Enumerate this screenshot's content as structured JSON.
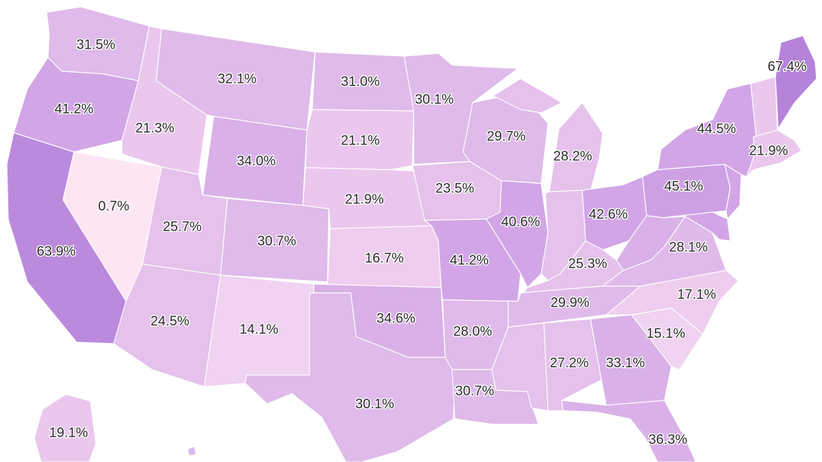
{
  "map": {
    "colors": {
      "c07": "#fde6f3",
      "c14": "#f0d2f1",
      "c17": "#efcdef",
      "c20": "#ebc7ee",
      "c25": "#e5c1ec",
      "c30": "#dfbaea",
      "c35": "#d9b1e8",
      "c42": "#d2a6e6",
      "c45": "#cda0e4",
      "c64": "#bb8add",
      "c67": "#b683da"
    },
    "states": [
      {
        "id": "WA",
        "value": "31.5%"
      },
      {
        "id": "OR",
        "value": "41.2%"
      },
      {
        "id": "CA",
        "value": "63.9%"
      },
      {
        "id": "NV",
        "value": "0.7%"
      },
      {
        "id": "ID",
        "value": "21.3%"
      },
      {
        "id": "MT",
        "value": "32.1%"
      },
      {
        "id": "WY",
        "value": "34.0%"
      },
      {
        "id": "UT",
        "value": "25.7%"
      },
      {
        "id": "CO",
        "value": "30.7%"
      },
      {
        "id": "AZ",
        "value": "24.5%"
      },
      {
        "id": "NM",
        "value": "14.1%"
      },
      {
        "id": "ND",
        "value": "31.0%"
      },
      {
        "id": "SD",
        "value": "21.1%"
      },
      {
        "id": "NE",
        "value": "21.9%"
      },
      {
        "id": "KS",
        "value": "16.7%"
      },
      {
        "id": "OK",
        "value": "34.6%"
      },
      {
        "id": "TX",
        "value": "30.1%"
      },
      {
        "id": "MN",
        "value": "30.1%"
      },
      {
        "id": "IA",
        "value": "23.5%"
      },
      {
        "id": "MO",
        "value": "41.2%"
      },
      {
        "id": "AR",
        "value": "28.0%"
      },
      {
        "id": "LA",
        "value": "30.7%"
      },
      {
        "id": "WI",
        "value": "29.7%"
      },
      {
        "id": "IL",
        "value": "40.6%"
      },
      {
        "id": "MI",
        "value": "28.2%"
      },
      {
        "id": "IN",
        "value": ""
      },
      {
        "id": "OH",
        "value": "42.6%"
      },
      {
        "id": "KY",
        "value": "25.3%"
      },
      {
        "id": "TN",
        "value": "29.9%"
      },
      {
        "id": "MS",
        "value": ""
      },
      {
        "id": "AL",
        "value": "27.2%"
      },
      {
        "id": "GA",
        "value": "33.1%"
      },
      {
        "id": "FL",
        "value": "36.3%"
      },
      {
        "id": "SC",
        "value": "15.1%"
      },
      {
        "id": "NC",
        "value": "17.1%"
      },
      {
        "id": "VA",
        "value": "28.1%"
      },
      {
        "id": "WV",
        "value": ""
      },
      {
        "id": "PA",
        "value": "45.1%"
      },
      {
        "id": "NY",
        "value": "44.5%"
      },
      {
        "id": "ME",
        "value": "67.4%"
      },
      {
        "id": "MA",
        "value": "21.9%"
      },
      {
        "id": "AK",
        "value": "19.1%"
      }
    ]
  }
}
